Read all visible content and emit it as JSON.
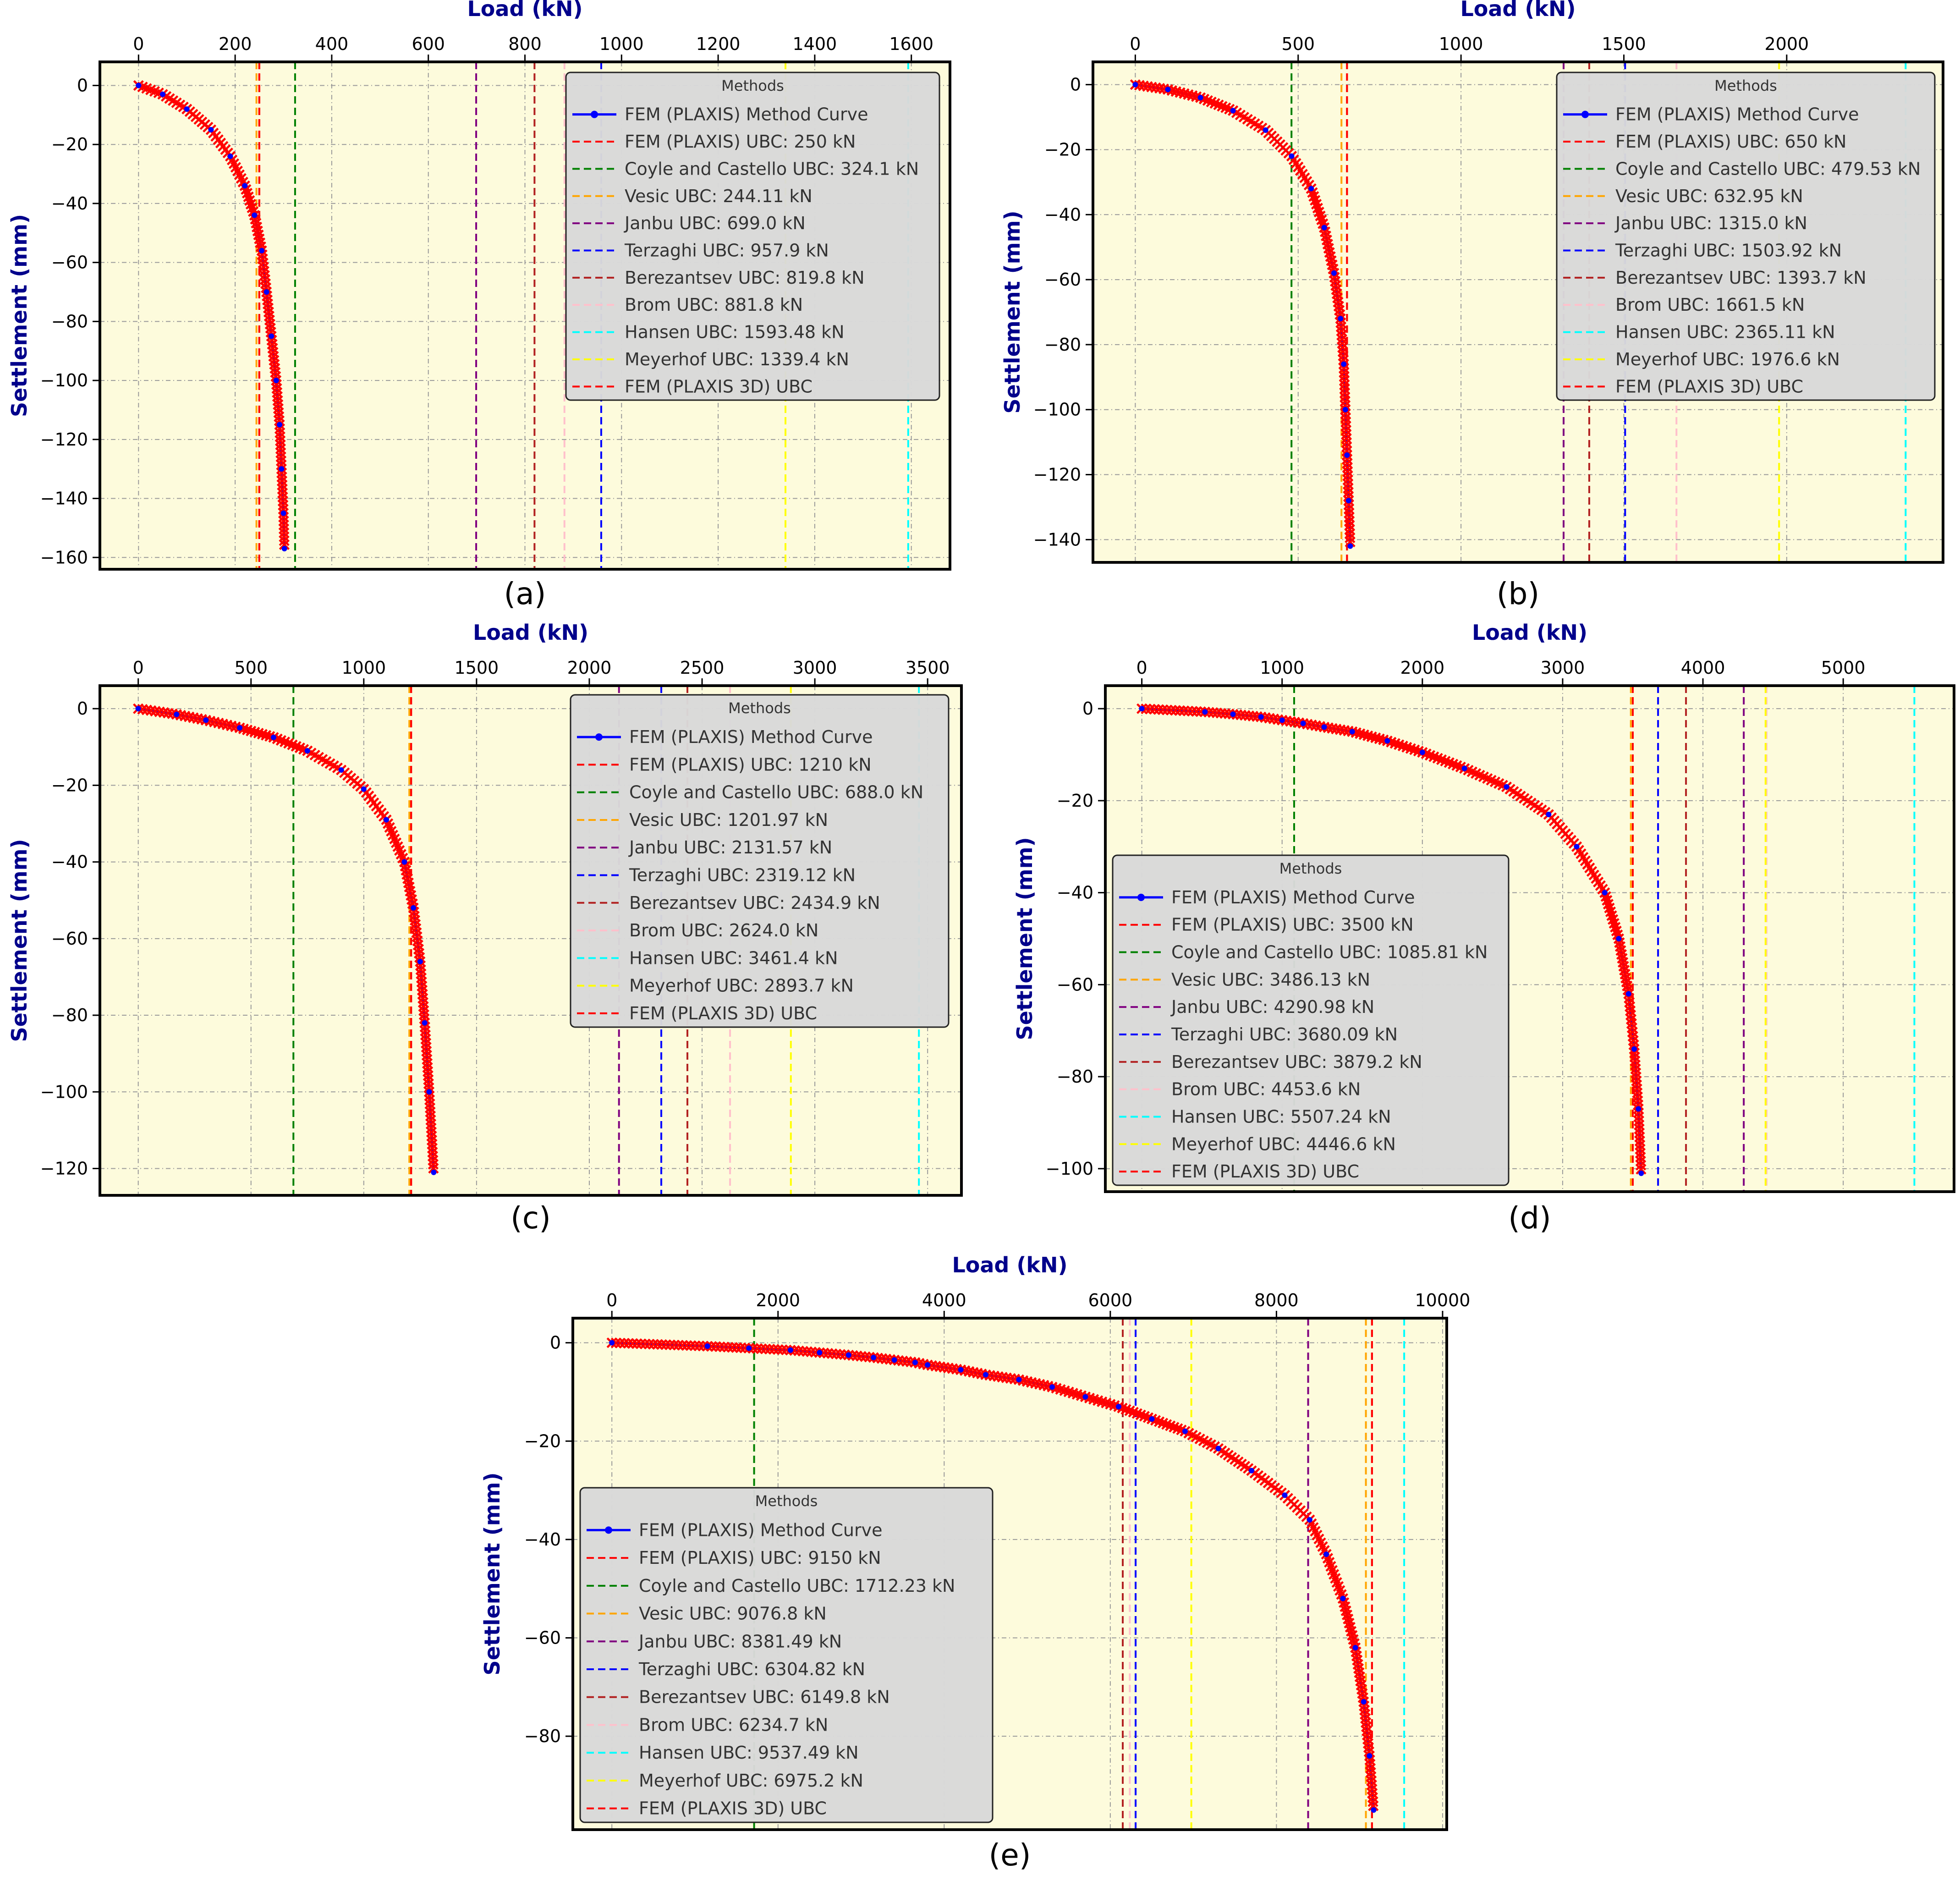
{
  "figure": {
    "x_axis_label": "Load (kN)",
    "y_axis_label": "Settlement (mm)",
    "legend_title": "Methods",
    "colors": {
      "plot_bg": "#fdfbdc",
      "axis_label": "#00008b",
      "curve": "#0000ff",
      "markers": "#ff0000",
      "legend_bg": "#d9d9d9",
      "grid": "#9a9a9a"
    }
  },
  "chart_data": [
    {
      "panel": "(a)",
      "type": "line",
      "xlim": [
        -80,
        1680
      ],
      "ylim": [
        -164,
        8
      ],
      "xticks": [
        0,
        200,
        400,
        600,
        800,
        1000,
        1200,
        1400,
        1600
      ],
      "yticks": [
        0,
        -20,
        -40,
        -60,
        -80,
        -100,
        -120,
        -140,
        -160
      ],
      "curve": {
        "name": "FEM (PLAXIS) Method Curve",
        "x": [
          0,
          50,
          100,
          150,
          190,
          220,
          240,
          255,
          265,
          275,
          285,
          292,
          296,
          300,
          302
        ],
        "y": [
          0,
          -3,
          -8,
          -15,
          -24,
          -34,
          -44,
          -56,
          -70,
          -85,
          -100,
          -115,
          -130,
          -145,
          -157
        ]
      },
      "ubc": [
        {
          "label": "FEM (PLAXIS) UBC: 250 kN",
          "value": 250,
          "color": "#ff0000"
        },
        {
          "label": "Coyle and Castello UBC: 324.1 kN",
          "value": 324.1,
          "color": "#008000"
        },
        {
          "label": "Vesic UBC: 244.11 kN",
          "value": 244.11,
          "color": "#ffa500"
        },
        {
          "label": "Janbu UBC: 699.0 kN",
          "value": 699.0,
          "color": "#800080"
        },
        {
          "label": "Terzaghi UBC: 957.9 kN",
          "value": 957.9,
          "color": "#0000ff"
        },
        {
          "label": "Berezantsev UBC: 819.8 kN",
          "value": 819.8,
          "color": "#b22222"
        },
        {
          "label": "Brom UBC: 881.8 kN",
          "value": 881.8,
          "color": "#ffc0cb"
        },
        {
          "label": "Hansen UBC: 1593.48 kN",
          "value": 1593.48,
          "color": "#00ffff"
        },
        {
          "label": "Meyerhof UBC: 1339.4 kN",
          "value": 1339.4,
          "color": "#ffff00"
        },
        {
          "label": "FEM (PLAXIS 3D) UBC",
          "value": 250,
          "color": "#ff0000"
        }
      ]
    },
    {
      "panel": "(b)",
      "type": "line",
      "xlim": [
        -130,
        2480
      ],
      "ylim": [
        -147,
        7
      ],
      "xticks": [
        0,
        500,
        1000,
        1500,
        2000
      ],
      "yticks": [
        0,
        -20,
        -40,
        -60,
        -80,
        -100,
        -120,
        -140
      ],
      "curve": {
        "name": "FEM (PLAXIS) Method Curve",
        "x": [
          0,
          100,
          200,
          300,
          400,
          480,
          540,
          580,
          610,
          630,
          640,
          645,
          650,
          655,
          660
        ],
        "y": [
          0,
          -1.5,
          -4,
          -8,
          -14,
          -22,
          -32,
          -44,
          -58,
          -72,
          -86,
          -100,
          -114,
          -128,
          -142
        ]
      },
      "ubc": [
        {
          "label": "FEM (PLAXIS) UBC: 650 kN",
          "value": 650,
          "color": "#ff0000"
        },
        {
          "label": "Coyle and Castello UBC: 479.53 kN",
          "value": 479.53,
          "color": "#008000"
        },
        {
          "label": "Vesic UBC: 632.95 kN",
          "value": 632.95,
          "color": "#ffa500"
        },
        {
          "label": "Janbu UBC: 1315.0 kN",
          "value": 1315.0,
          "color": "#800080"
        },
        {
          "label": "Terzaghi UBC: 1503.92 kN",
          "value": 1503.92,
          "color": "#0000ff"
        },
        {
          "label": "Berezantsev UBC: 1393.7 kN",
          "value": 1393.7,
          "color": "#b22222"
        },
        {
          "label": "Brom UBC: 1661.5 kN",
          "value": 1661.5,
          "color": "#ffc0cb"
        },
        {
          "label": "Hansen UBC: 2365.11 kN",
          "value": 2365.11,
          "color": "#00ffff"
        },
        {
          "label": "Meyerhof UBC: 1976.6 kN",
          "value": 1976.6,
          "color": "#ffff00"
        },
        {
          "label": "FEM (PLAXIS 3D) UBC",
          "value": 650,
          "color": "#ff0000"
        }
      ]
    },
    {
      "panel": "(c)",
      "type": "line",
      "xlim": [
        -170,
        3650
      ],
      "ylim": [
        -127,
        6
      ],
      "xticks": [
        0,
        500,
        1000,
        1500,
        2000,
        2500,
        3000,
        3500
      ],
      "yticks": [
        0,
        -20,
        -40,
        -60,
        -80,
        -100,
        -120
      ],
      "curve": {
        "name": "FEM (PLAXIS) Method Curve",
        "x": [
          0,
          170,
          300,
          450,
          600,
          750,
          900,
          1000,
          1100,
          1180,
          1220,
          1250,
          1270,
          1290,
          1310
        ],
        "y": [
          0,
          -1.5,
          -3,
          -5,
          -7.5,
          -11,
          -16,
          -21,
          -29,
          -40,
          -52,
          -66,
          -82,
          -100,
          -121
        ]
      },
      "ubc": [
        {
          "label": "FEM (PLAXIS) UBC: 1210 kN",
          "value": 1210,
          "color": "#ff0000"
        },
        {
          "label": "Coyle and Castello UBC: 688.0 kN",
          "value": 688.0,
          "color": "#008000"
        },
        {
          "label": "Vesic UBC: 1201.97 kN",
          "value": 1201.97,
          "color": "#ffa500"
        },
        {
          "label": "Janbu UBC: 2131.57 kN",
          "value": 2131.57,
          "color": "#800080"
        },
        {
          "label": "Terzaghi UBC: 2319.12 kN",
          "value": 2319.12,
          "color": "#0000ff"
        },
        {
          "label": "Berezantsev UBC: 2434.9 kN",
          "value": 2434.9,
          "color": "#b22222"
        },
        {
          "label": "Brom UBC: 2624.0 kN",
          "value": 2624.0,
          "color": "#ffc0cb"
        },
        {
          "label": "Hansen UBC: 3461.4 kN",
          "value": 3461.4,
          "color": "#00ffff"
        },
        {
          "label": "Meyerhof UBC: 2893.7 kN",
          "value": 2893.7,
          "color": "#ffff00"
        },
        {
          "label": "FEM (PLAXIS 3D) UBC",
          "value": 1210,
          "color": "#ff0000"
        }
      ]
    },
    {
      "panel": "(d)",
      "type": "line",
      "xlim": [
        -260,
        5790
      ],
      "ylim": [
        -105,
        5
      ],
      "xticks": [
        0,
        1000,
        2000,
        3000,
        4000,
        5000
      ],
      "yticks": [
        0,
        -20,
        -40,
        -60,
        -80,
        -100
      ],
      "curve": {
        "name": "FEM (PLAXIS) Method Curve",
        "x": [
          0,
          450,
          650,
          850,
          1000,
          1150,
          1300,
          1500,
          1750,
          2000,
          2300,
          2600,
          2900,
          3100,
          3300,
          3400,
          3470,
          3510,
          3540,
          3560
        ],
        "y": [
          0,
          -0.7,
          -1.2,
          -1.8,
          -2.5,
          -3.2,
          -4,
          -5,
          -7,
          -9.5,
          -13,
          -17,
          -23,
          -30,
          -40,
          -50,
          -62,
          -74,
          -87,
          -101
        ]
      },
      "ubc": [
        {
          "label": "FEM (PLAXIS) UBC: 3500 kN",
          "value": 3500,
          "color": "#ff0000"
        },
        {
          "label": "Coyle and Castello UBC: 1085.81 kN",
          "value": 1085.81,
          "color": "#008000"
        },
        {
          "label": "Vesic UBC: 3486.13 kN",
          "value": 3486.13,
          "color": "#ffa500"
        },
        {
          "label": "Janbu UBC: 4290.98 kN",
          "value": 4290.98,
          "color": "#800080"
        },
        {
          "label": "Terzaghi UBC: 3680.09 kN",
          "value": 3680.09,
          "color": "#0000ff"
        },
        {
          "label": "Berezantsev UBC: 3879.2 kN",
          "value": 3879.2,
          "color": "#b22222"
        },
        {
          "label": "Brom UBC: 4453.6 kN",
          "value": 4453.6,
          "color": "#ffc0cb"
        },
        {
          "label": "Hansen UBC: 5507.24 kN",
          "value": 5507.24,
          "color": "#00ffff"
        },
        {
          "label": "Meyerhof UBC: 4446.6 kN",
          "value": 4446.6,
          "color": "#ffff00"
        },
        {
          "label": "FEM (PLAXIS 3D) UBC",
          "value": 3500,
          "color": "#ff0000"
        }
      ]
    },
    {
      "panel": "(e)",
      "type": "line",
      "xlim": [
        -470,
        10050
      ],
      "ylim": [
        -99,
        5
      ],
      "xticks": [
        0,
        2000,
        4000,
        6000,
        8000,
        10000
      ],
      "yticks": [
        0,
        -20,
        -40,
        -60,
        -80
      ],
      "curve": {
        "name": "FEM (PLAXIS) Method Curve",
        "x": [
          0,
          1150,
          1650,
          2150,
          2500,
          2850,
          3150,
          3400,
          3650,
          3800,
          4200,
          4500,
          4900,
          5300,
          5700,
          6100,
          6500,
          6900,
          7300,
          7700,
          8100,
          8400,
          8600,
          8800,
          8950,
          9050,
          9120,
          9170
        ],
        "y": [
          0,
          -0.7,
          -1.1,
          -1.5,
          -2,
          -2.5,
          -3,
          -3.5,
          -4,
          -4.5,
          -5.5,
          -6.5,
          -7.5,
          -9,
          -11,
          -13,
          -15.5,
          -18,
          -21.5,
          -26,
          -31,
          -36,
          -43,
          -52,
          -62,
          -73,
          -84,
          -95
        ]
      },
      "ubc": [
        {
          "label": "FEM (PLAXIS) UBC: 9150 kN",
          "value": 9150,
          "color": "#ff0000"
        },
        {
          "label": "Coyle and Castello UBC: 1712.23 kN",
          "value": 1712.23,
          "color": "#008000"
        },
        {
          "label": "Vesic UBC: 9076.8 kN",
          "value": 9076.8,
          "color": "#ffa500"
        },
        {
          "label": "Janbu UBC: 8381.49 kN",
          "value": 8381.49,
          "color": "#800080"
        },
        {
          "label": "Terzaghi UBC: 6304.82 kN",
          "value": 6304.82,
          "color": "#0000ff"
        },
        {
          "label": "Berezantsev UBC: 6149.8 kN",
          "value": 6149.8,
          "color": "#b22222"
        },
        {
          "label": "Brom UBC: 6234.7 kN",
          "value": 6234.7,
          "color": "#ffc0cb"
        },
        {
          "label": "Hansen UBC: 9537.49 kN",
          "value": 9537.49,
          "color": "#00ffff"
        },
        {
          "label": "Meyerhof UBC: 6975.2 kN",
          "value": 6975.2,
          "color": "#ffff00"
        },
        {
          "label": "FEM (PLAXIS 3D) UBC",
          "value": 9150,
          "color": "#ff0000"
        }
      ]
    }
  ]
}
